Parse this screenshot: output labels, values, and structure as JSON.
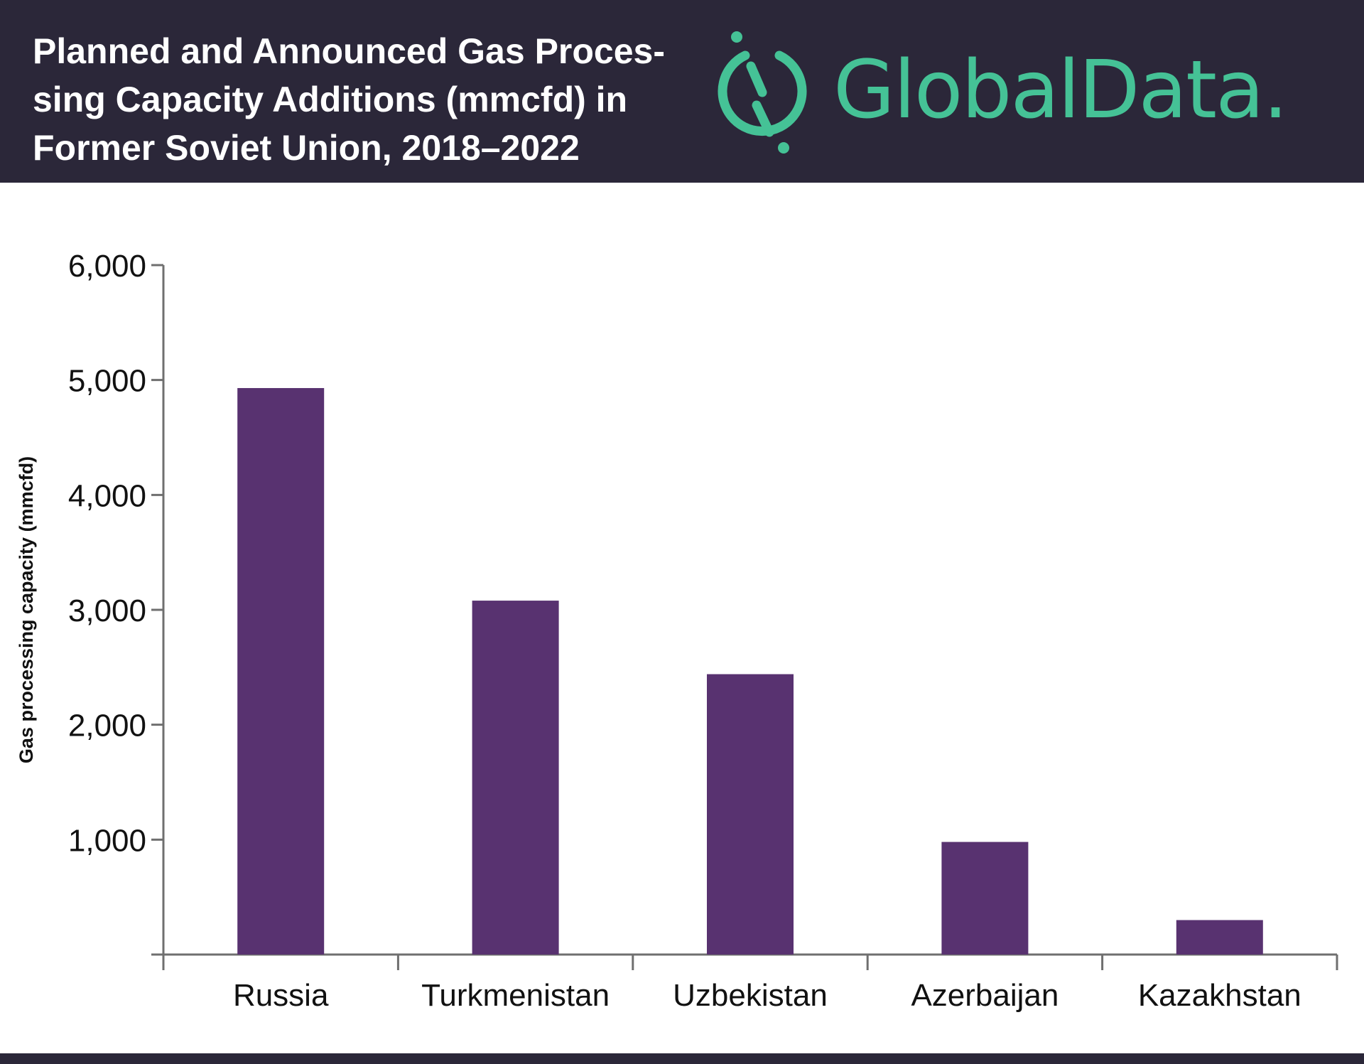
{
  "header": {
    "title_lines": [
      "Planned and Announced Gas Proces-",
      "sing Capacity Additions (mmcfd) in",
      "Former Soviet Union, 2018–2022"
    ],
    "logo_text": "GlobalData."
  },
  "colors": {
    "header_bg": "#2b2739",
    "brand_accent": "#45c296",
    "bar": "#583270",
    "axis": "#6f6f6f",
    "text": "#111111"
  },
  "chart_data": {
    "type": "bar",
    "title": "Planned and Announced Gas Processing Capacity Additions (mmcfd) in Former Soviet Union, 2018–2022",
    "categories": [
      "Russia",
      "Turkmenistan",
      "Uzbekistan",
      "Azerbaijan",
      "Kazakhstan"
    ],
    "values": [
      4930,
      3080,
      2440,
      980,
      300
    ],
    "ylabel": "Gas processing capacity (mmcfd)",
    "xlabel": "",
    "ylim": [
      0,
      6000
    ],
    "yticks": [
      1000,
      2000,
      3000,
      4000,
      5000,
      6000
    ],
    "ytick_labels": [
      "1,000",
      "2,000",
      "3,000",
      "4,000",
      "5,000",
      "6,000"
    ],
    "grid": false,
    "legend": false
  }
}
